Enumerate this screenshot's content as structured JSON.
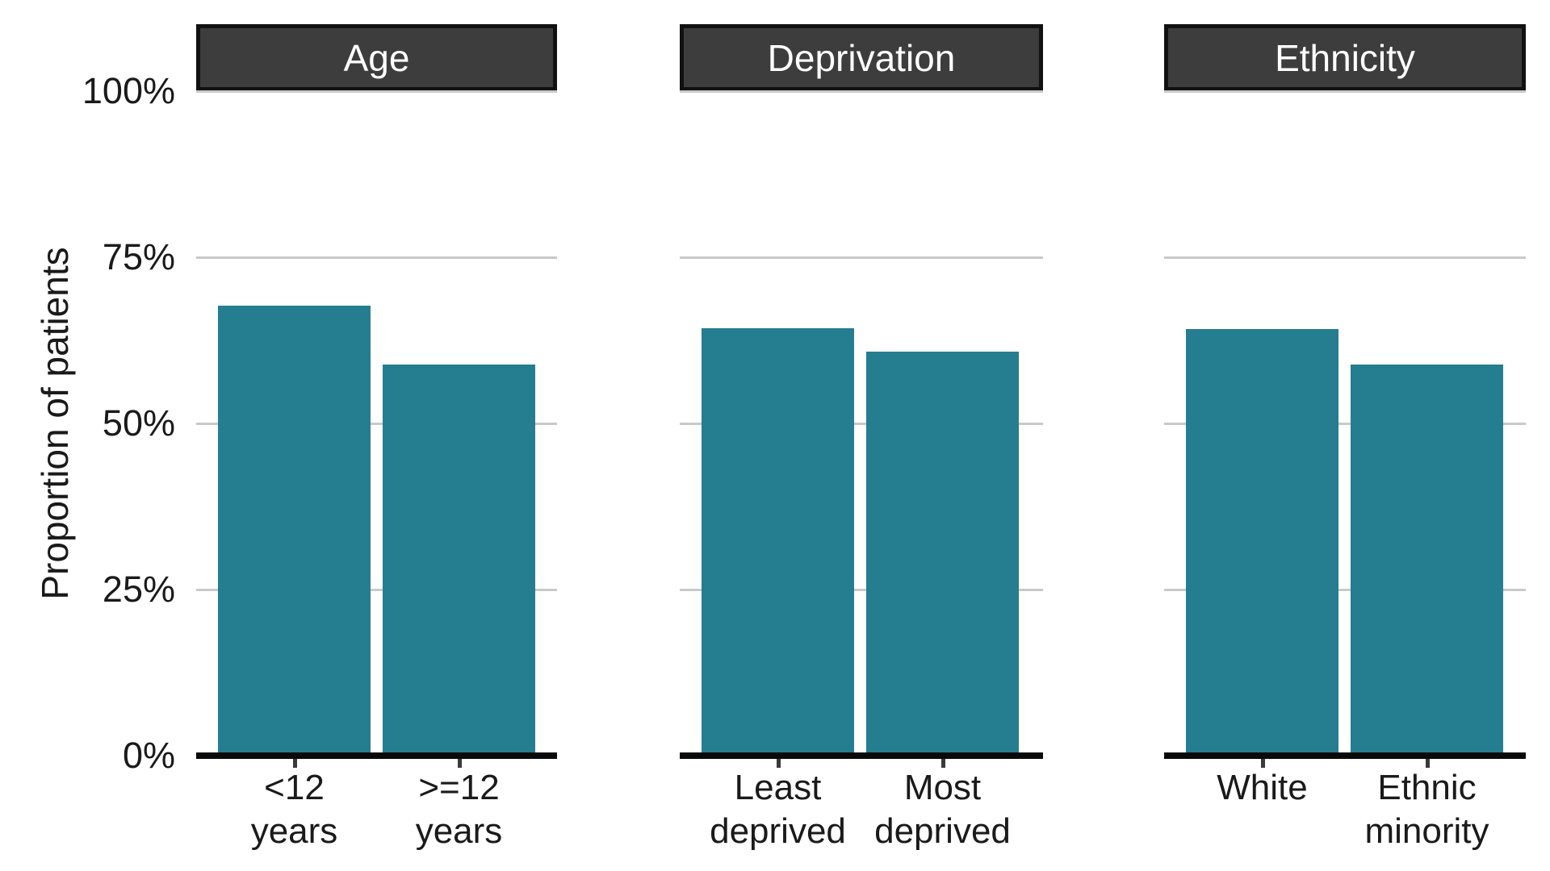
{
  "chart_data": {
    "type": "bar",
    "title": "",
    "ylabel": "Proportion of patients",
    "ylim": [
      0,
      100
    ],
    "yticks": [
      {
        "label": "0%",
        "value": 0
      },
      {
        "label": "25%",
        "value": 25
      },
      {
        "label": "50%",
        "value": 50
      },
      {
        "label": "75%",
        "value": 75
      },
      {
        "label": "100%",
        "value": 100
      }
    ],
    "grid": "horizontal gridlines at 25%, 50%, 75%, 100%; legend none; faceted into 3 panels",
    "panels": [
      {
        "label": "Age",
        "categories": [
          [
            "<12",
            "years"
          ],
          [
            ">=12",
            "years"
          ]
        ],
        "values": [
          67.7,
          58.9
        ]
      },
      {
        "label": "Deprivation",
        "categories": [
          [
            "Least",
            "deprived"
          ],
          [
            "Most",
            "deprived"
          ]
        ],
        "values": [
          64.3,
          60.8
        ]
      },
      {
        "label": "Ethnicity",
        "categories": [
          [
            "White"
          ],
          [
            "Ethnic",
            "minority"
          ]
        ],
        "values": [
          64.2,
          58.9
        ]
      }
    ],
    "colors": {
      "bar": "#257d90",
      "strip_bg": "#3d3d3d",
      "strip_text": "#ffffff",
      "strip_border": "#111111",
      "gridline": "#c9c9c9",
      "axis_line": "#0a0a0a",
      "tick_mark": "#3a3a3a",
      "text": "#1a1a1a"
    }
  }
}
